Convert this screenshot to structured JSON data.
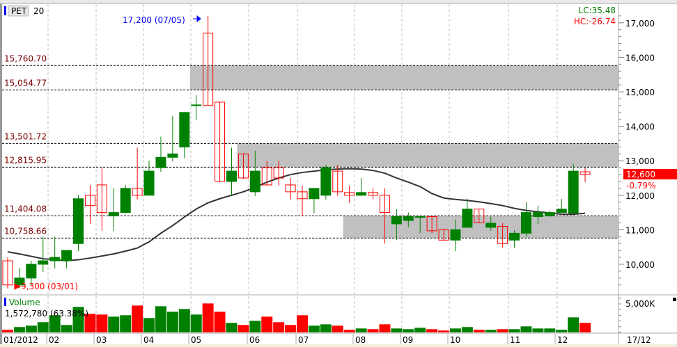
{
  "symbol": "PET",
  "period": "20",
  "lc_label": "LC:35.48",
  "hc_label": "HC:-26.74",
  "last_price_label": "12,600",
  "change_label": "-0.79%",
  "high_annotation": "17,200 (07/05)",
  "low_annotation": "9,300 (03/01)",
  "volume_title": "Volume",
  "volume_value": "1,572,780 (63.38%)",
  "volume_axis_label": "5,000K",
  "date_label_right": "17/12",
  "colors": {
    "up": "#008000",
    "down": "#ff0000",
    "zone": "#c0c0c0",
    "ma": "#333333",
    "level_text": "#7a0000",
    "annotation": "#0000ff"
  },
  "chart_data": {
    "type": "candlestick",
    "ylim": [
      9200,
      17400
    ],
    "y_ticks": [
      "10,000",
      "11,000",
      "12,000",
      "13,000",
      "14,000",
      "15,000",
      "16,000",
      "17,000"
    ],
    "y_tick_values": [
      10000,
      11000,
      12000,
      13000,
      14000,
      15000,
      16000,
      17000
    ],
    "x_tick_labels": [
      "01/2012",
      "02",
      "03",
      "04",
      "05",
      "06",
      "07",
      "08",
      "09",
      "10",
      "11",
      "12"
    ],
    "x_tick_index": [
      0,
      4,
      8,
      12,
      16,
      21,
      25,
      30,
      34,
      38,
      43,
      47
    ],
    "levels": [
      {
        "label": "15,760.70",
        "value": 15760.7
      },
      {
        "label": "15,054.77",
        "value": 15054.77
      },
      {
        "label": "13,501.72",
        "value": 13501.72
      },
      {
        "label": "12,815.95",
        "value": 12815.95
      },
      {
        "label": "11,404.08",
        "value": 11404.08
      },
      {
        "label": "10,758.66",
        "value": 10758.66
      }
    ],
    "zones": [
      {
        "from": 15054.77,
        "to": 15760.7,
        "start_index": 16
      },
      {
        "from": 12815.95,
        "to": 13501.72,
        "start_index": 20
      },
      {
        "from": 10758.66,
        "to": 11404.08,
        "start_index": 29
      }
    ],
    "candles": [
      [
        10100,
        10200,
        9300,
        9400
      ],
      [
        9400,
        9900,
        9300,
        9600
      ],
      [
        9600,
        10100,
        9380,
        10000
      ],
      [
        10000,
        10800,
        9780,
        10100
      ],
      [
        10100,
        10800,
        9880,
        10200
      ],
      [
        10100,
        10400,
        9880,
        10400
      ],
      [
        10600,
        12000,
        10380,
        11900
      ],
      [
        12000,
        12300,
        11170,
        11700
      ],
      [
        12300,
        12780,
        10970,
        11500
      ],
      [
        11400,
        12200,
        10970,
        11500
      ],
      [
        11500,
        12300,
        11480,
        12200
      ],
      [
        12200,
        13380,
        11880,
        12000
      ],
      [
        12000,
        13000,
        12000,
        12700
      ],
      [
        12800,
        13700,
        12680,
        13100
      ],
      [
        13100,
        14300,
        12980,
        13200
      ],
      [
        13400,
        14400,
        13080,
        14400
      ],
      [
        14600,
        14900,
        14170,
        14620
      ],
      [
        16700,
        17200,
        14600,
        14600
      ],
      [
        14700,
        14700,
        12400,
        12400
      ],
      [
        12400,
        13380,
        11980,
        12700
      ],
      [
        13200,
        13200,
        12480,
        12500
      ],
      [
        12100,
        13290,
        11980,
        12700
      ],
      [
        12800,
        13000,
        12280,
        12300
      ],
      [
        12800,
        13000,
        12280,
        12500
      ],
      [
        12300,
        12500,
        11880,
        12100
      ],
      [
        12100,
        12280,
        11400,
        11900
      ],
      [
        11900,
        12180,
        11480,
        12200
      ],
      [
        12000,
        12880,
        11880,
        12800
      ],
      [
        12700,
        12880,
        11980,
        12100
      ],
      [
        12080,
        12280,
        11780,
        12000
      ],
      [
        12000,
        12500,
        11980,
        12080
      ],
      [
        12080,
        12200,
        11880,
        12000
      ],
      [
        12000,
        12200,
        10600,
        11500
      ],
      [
        11170,
        11600,
        10700,
        11380
      ],
      [
        11270,
        11500,
        11070,
        11380
      ],
      [
        11380,
        11400,
        10900,
        11380
      ],
      [
        11380,
        11380,
        10900,
        10970
      ],
      [
        11000,
        11000,
        10700,
        10700
      ],
      [
        10700,
        11300,
        10380,
        11000
      ],
      [
        11070,
        11900,
        11070,
        11600
      ],
      [
        11600,
        11600,
        11190,
        11200
      ],
      [
        11070,
        11380,
        10970,
        11190
      ],
      [
        11100,
        11190,
        10480,
        10600
      ],
      [
        10700,
        10980,
        10480,
        10900
      ],
      [
        10900,
        11800,
        10800,
        11500
      ],
      [
        11380,
        11700,
        11170,
        11500
      ],
      [
        11400,
        11550,
        11380,
        11500
      ],
      [
        11500,
        11900,
        11500,
        11600
      ],
      [
        11480,
        12900,
        11480,
        12700
      ],
      [
        12680,
        12800,
        12380,
        12600
      ]
    ],
    "ma20": [
      10360,
      10300,
      10230,
      10160,
      10130,
      10100,
      10130,
      10180,
      10240,
      10300,
      10380,
      10470,
      10650,
      10900,
      11120,
      11370,
      11600,
      11780,
      11900,
      12000,
      12100,
      12230,
      12380,
      12500,
      12600,
      12660,
      12700,
      12740,
      12760,
      12770,
      12760,
      12720,
      12640,
      12500,
      12380,
      12250,
      12050,
      11920,
      11880,
      11850,
      11810,
      11760,
      11700,
      11620,
      11560,
      11520,
      11490,
      11450,
      11450,
      11480
    ],
    "volume_k": [
      450,
      940,
      1180,
      1790,
      3010,
      1300,
      4470,
      3250,
      3130,
      2760,
      3010,
      4710,
      2520,
      4590,
      3620,
      4100,
      3130,
      5080,
      3620,
      1670,
      1300,
      2030,
      2760,
      1790,
      1300,
      3010,
      1180,
      1420,
      1180,
      450,
      690,
      570,
      1420,
      690,
      570,
      810,
      570,
      330,
      690,
      940,
      450,
      450,
      570,
      570,
      1060,
      690,
      690,
      450,
      2640,
      1670
    ],
    "volume_up": [
      0,
      1,
      1,
      1,
      1,
      1,
      1,
      0,
      0,
      1,
      1,
      0,
      1,
      1,
      1,
      1,
      1,
      0,
      0,
      1,
      0,
      1,
      0,
      0,
      0,
      0,
      1,
      1,
      0,
      0,
      1,
      0,
      0,
      1,
      1,
      1,
      0,
      0,
      1,
      1,
      0,
      1,
      0,
      1,
      1,
      1,
      1,
      1,
      1,
      0
    ]
  }
}
